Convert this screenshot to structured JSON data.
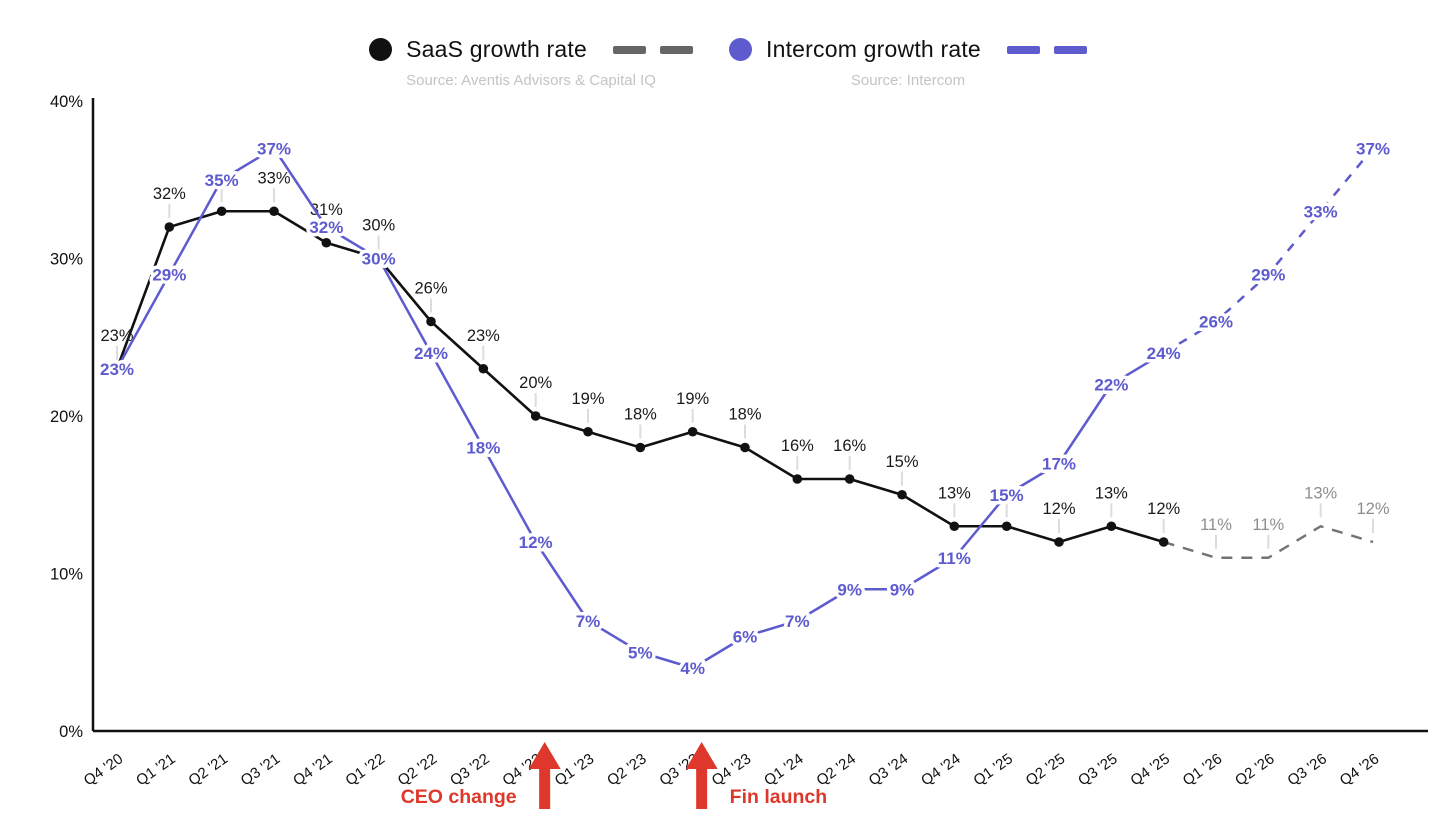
{
  "legend": {
    "items": [
      {
        "label": "SaaS growth rate",
        "source": "Source: Aventis Advisors & Capital IQ",
        "marker_color": "#111111",
        "dash_color": "#666666"
      },
      {
        "label": "Intercom growth rate",
        "source": "Source: Intercom",
        "marker_color": "#5d5bce",
        "dash_color": "#5d5bce"
      }
    ]
  },
  "chart_data": {
    "type": "line",
    "title": "",
    "xlabel": "",
    "ylabel": "",
    "categories": [
      "Q4 '20",
      "Q1 '21",
      "Q2 '21",
      "Q3 '21",
      "Q4 '21",
      "Q1 '22",
      "Q2 '22",
      "Q3 '22",
      "Q4 '22",
      "Q1 '23",
      "Q2 '23",
      "Q3 '23",
      "Q4 '23",
      "Q1 '24",
      "Q2 '24",
      "Q3 '24",
      "Q4 '24",
      "Q1 '25",
      "Q2 '25",
      "Q3 '25",
      "Q4 '25",
      "Q1 '26",
      "Q2 '26",
      "Q3 '26",
      "Q4 '26"
    ],
    "ylim": [
      0,
      40
    ],
    "y_ticks": [
      0,
      10,
      20,
      30,
      40
    ],
    "y_tick_labels": [
      "0%",
      "10%",
      "20%",
      "30%",
      "40%"
    ],
    "grid": false,
    "legend_position": "top",
    "series": [
      {
        "name": "SaaS growth rate",
        "color": "#111111",
        "projection_color": "#737373",
        "label_color": "#1a1a1a",
        "projection_label_color": "#8d8d8d",
        "markers": true,
        "label_style": "above",
        "solid_until_index": 20,
        "values": [
          23,
          32,
          33,
          33,
          31,
          30,
          26,
          23,
          20,
          19,
          18,
          19,
          18,
          16,
          16,
          15,
          13,
          13,
          12,
          13,
          12,
          11,
          11,
          13,
          12
        ]
      },
      {
        "name": "Intercom growth rate",
        "color": "#5d5bce",
        "projection_color": "#5d5bce",
        "label_color": "#5d5bce",
        "projection_label_color": "#5d5bce",
        "markers": false,
        "label_style": "on-line",
        "solid_until_index": 20,
        "values": [
          23,
          29,
          35,
          37,
          32,
          30,
          24,
          18,
          12,
          7,
          5,
          4,
          6,
          7,
          9,
          9,
          11,
          15,
          17,
          22,
          24,
          26,
          29,
          33,
          37
        ]
      }
    ],
    "annotations": [
      {
        "text": "CEO change",
        "category": "Q4 '22",
        "category_index": 8,
        "text_side": "left",
        "color": "#dd382b"
      },
      {
        "text": "Fin launch",
        "category": "Q3 '23",
        "category_index": 11,
        "text_side": "right",
        "color": "#dd382b"
      }
    ]
  }
}
